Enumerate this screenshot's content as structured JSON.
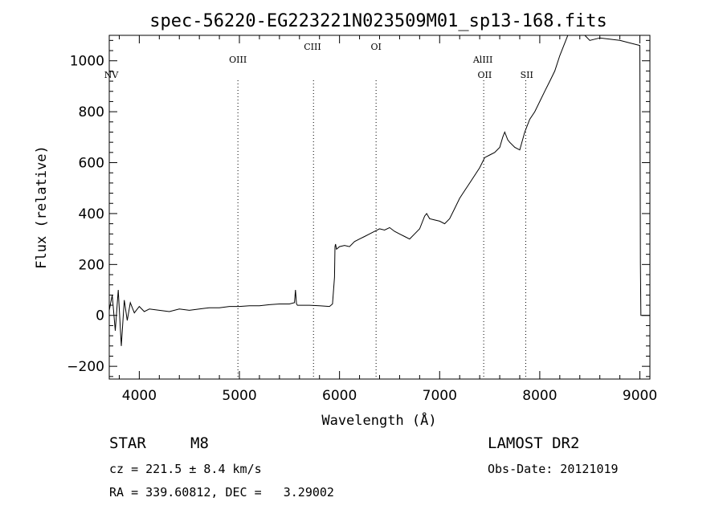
{
  "chart_data": {
    "type": "line",
    "title": "spec-56220-EG223221N023509M01_sp13-168.fits",
    "xlabel": "Wavelength (Å)",
    "ylabel": "Flux (relative)",
    "xlim": [
      3700,
      9100
    ],
    "ylim": [
      -250,
      1100
    ],
    "xticks": [
      4000,
      5000,
      6000,
      7000,
      8000,
      9000
    ],
    "yticks": [
      -200,
      0,
      200,
      400,
      600,
      800,
      1000
    ],
    "grid": false,
    "series": [
      {
        "x": [
          3700,
          3730,
          3760,
          3790,
          3820,
          3850,
          3880,
          3910,
          3950,
          4000,
          4050,
          4100,
          4200,
          4300,
          4400,
          4500,
          4600,
          4700,
          4800,
          4900,
          5000,
          5100,
          5200,
          5300,
          5400,
          5500,
          5550,
          5560,
          5570,
          5580,
          5600,
          5700,
          5800,
          5900,
          5930,
          5950,
          5955,
          5960,
          5970,
          6000,
          6050,
          6100,
          6150,
          6200,
          6250,
          6300,
          6350,
          6400,
          6450,
          6500,
          6550,
          6600,
          6650,
          6700,
          6750,
          6800,
          6850,
          6870,
          6900,
          6950,
          7000,
          7050,
          7100,
          7150,
          7200,
          7250,
          7300,
          7350,
          7400,
          7450,
          7500,
          7550,
          7600,
          7630,
          7650,
          7680,
          7700,
          7750,
          7800,
          7850,
          7900,
          7950,
          8000,
          8050,
          8100,
          8150,
          8200,
          8300,
          8400,
          8450,
          8500,
          8600,
          8700,
          8800,
          8900,
          9000,
          9005,
          9010,
          9050,
          9100
        ],
        "y": [
          20,
          80,
          -60,
          100,
          -120,
          60,
          -20,
          50,
          10,
          35,
          15,
          25,
          20,
          15,
          25,
          20,
          25,
          30,
          30,
          35,
          35,
          38,
          38,
          42,
          45,
          45,
          50,
          100,
          45,
          40,
          40,
          40,
          38,
          35,
          45,
          150,
          270,
          280,
          260,
          270,
          275,
          270,
          290,
          300,
          310,
          320,
          330,
          340,
          335,
          345,
          330,
          320,
          310,
          300,
          320,
          340,
          390,
          400,
          380,
          375,
          370,
          360,
          380,
          420,
          460,
          490,
          520,
          550,
          580,
          620,
          630,
          640,
          660,
          700,
          720,
          690,
          680,
          660,
          650,
          720,
          770,
          800,
          840,
          880,
          920,
          960,
          1020,
          1120,
          1110,
          1100,
          1080,
          1090,
          1085,
          1080,
          1070,
          1060,
          200,
          0,
          0,
          0
        ]
      }
    ],
    "annotations": [
      {
        "label": "NV",
        "x": 3720,
        "row": "low"
      },
      {
        "label": "OIII",
        "x": 4985,
        "row": "mid"
      },
      {
        "label": "CIII",
        "x": 5730,
        "row": "high"
      },
      {
        "label": "OI",
        "x": 6365,
        "row": "high"
      },
      {
        "label": "AlIII",
        "x": 7432,
        "row": "mid"
      },
      {
        "label": "OII",
        "x": 7450,
        "row": "low"
      },
      {
        "label": "SII",
        "x": 7870,
        "row": "low"
      }
    ],
    "line_marks": [
      4985,
      5740,
      6365,
      7440,
      7860
    ]
  },
  "footer": {
    "object_class": "STAR",
    "subclass": "M8",
    "cz": "cz = 221.5 ± 8.4 km/s",
    "coords": "RA = 339.60812, DEC =   3.29002",
    "survey": "LAMOST DR2",
    "obs_date": "Obs-Date: 20121019"
  }
}
